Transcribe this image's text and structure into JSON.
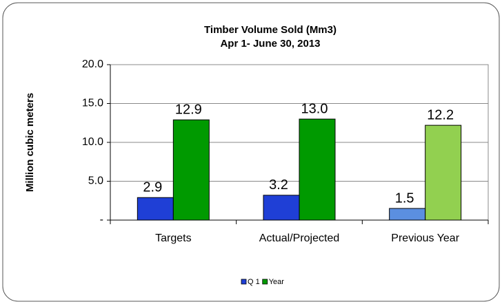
{
  "chart_data": {
    "type": "bar",
    "title": "Timber Volume Sold (Mm3)",
    "subtitle": "Apr 1- June 30, 2013",
    "y_label": "Million cubic meters",
    "categories": [
      "Targets",
      "Actual/Projected",
      "Previous Year"
    ],
    "series": [
      {
        "name": "Q 1",
        "color": "#1f3fd6",
        "point_colors": [
          "#1f3fd6",
          "#1f3fd6",
          "#5b8fe0"
        ],
        "values": [
          2.9,
          3.2,
          1.5
        ],
        "value_labels": [
          "2.9",
          "3.2",
          "1.5"
        ]
      },
      {
        "name": "Year",
        "color": "#009a00",
        "point_colors": [
          "#009a00",
          "#009a00",
          "#92d050"
        ],
        "values": [
          12.9,
          13.0,
          12.2
        ],
        "value_labels": [
          "12.9",
          "13.0",
          "12.2"
        ]
      }
    ],
    "ylim": [
      0,
      20
    ],
    "yticks": [
      {
        "value": 0,
        "label": "-"
      },
      {
        "value": 5,
        "label": "5.0"
      },
      {
        "value": 10,
        "label": "10.0"
      },
      {
        "value": 15,
        "label": "15.0"
      },
      {
        "value": 20,
        "label": "20.0"
      }
    ],
    "grid": true,
    "legend": "bottom"
  }
}
